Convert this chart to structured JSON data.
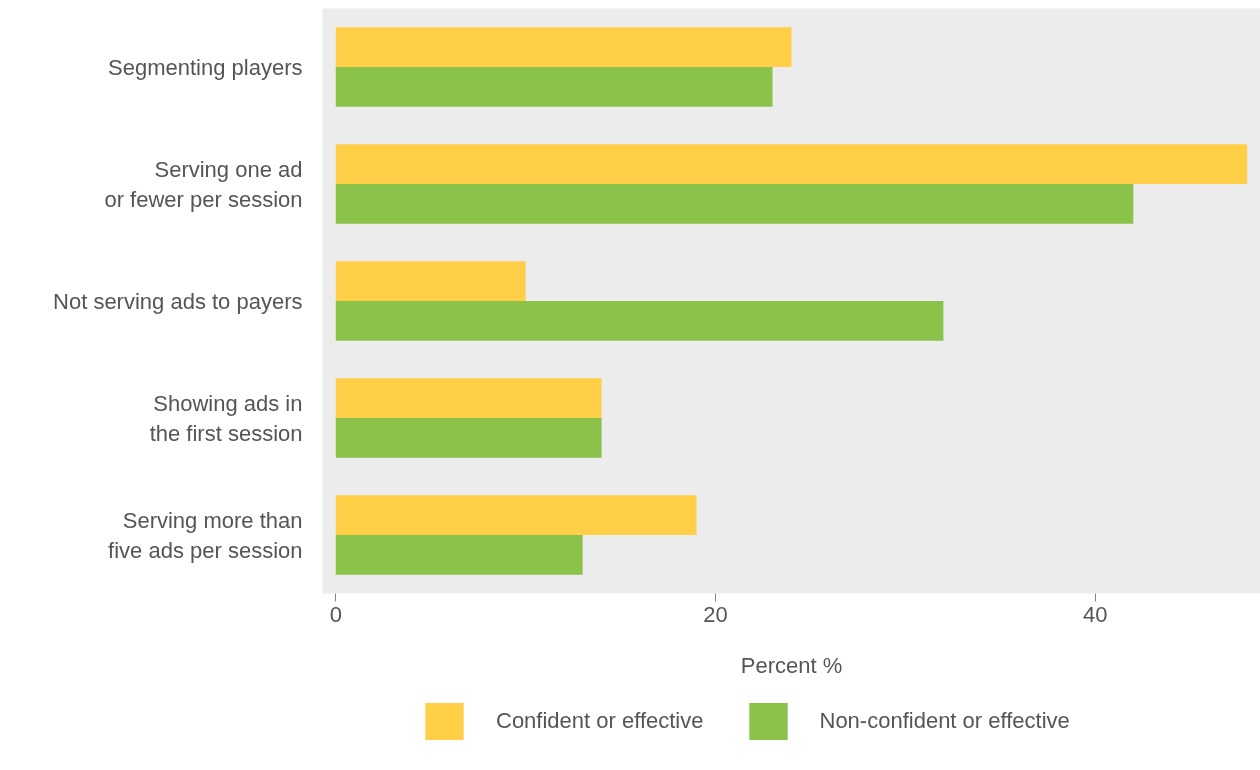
{
  "chart_data": {
    "type": "bar",
    "orientation": "horizontal",
    "xlabel": "Percent %",
    "categories": [
      "Segmenting players",
      "Serving one ad or fewer per session",
      "Not serving ads to payers",
      "Showing ads in the first session",
      "Serving more than five ads per session"
    ],
    "series": [
      {
        "name": "Confident or effective",
        "color": "#ffcf48",
        "values": [
          24,
          48,
          10,
          14,
          19
        ]
      },
      {
        "name": "Non-confident or effective",
        "color": "#8bc34a",
        "values": [
          23,
          42,
          32,
          14,
          13
        ]
      }
    ],
    "xlim": [
      -0.7,
      48.7
    ],
    "xticks": [
      0,
      20,
      40
    ],
    "grid": false,
    "legend": "bottom"
  }
}
